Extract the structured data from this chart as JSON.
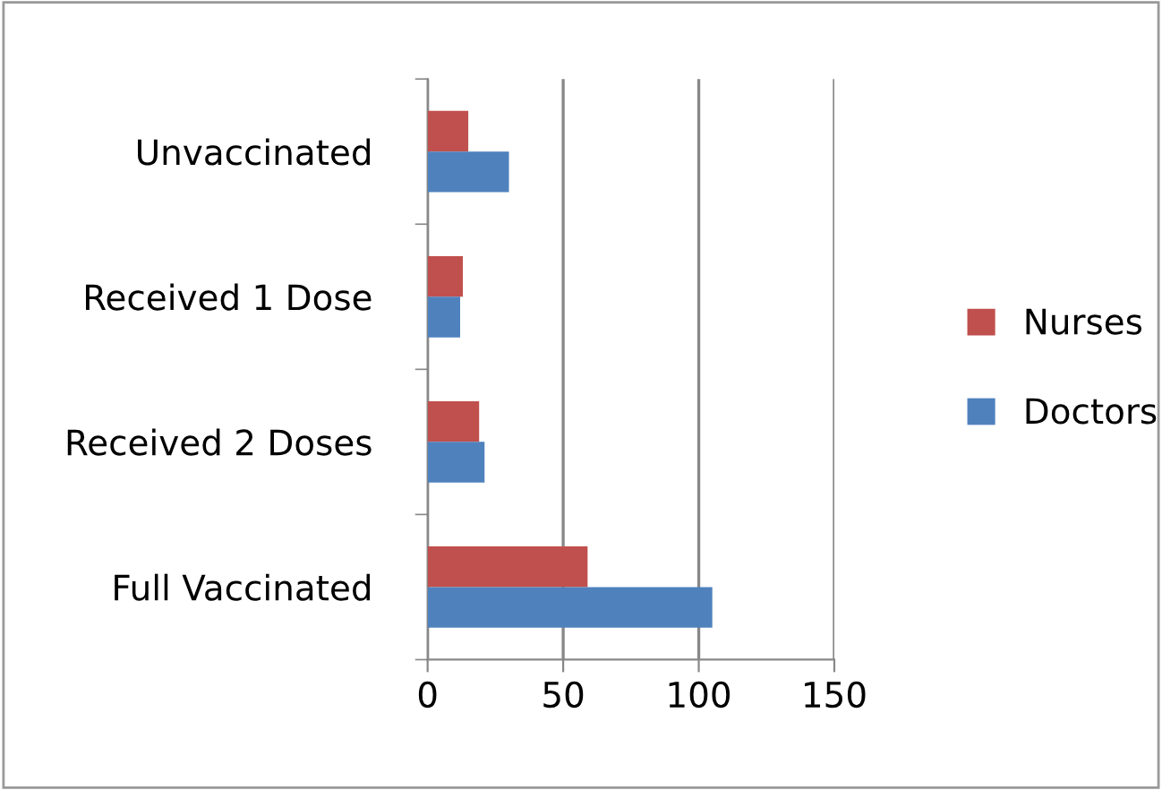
{
  "chart_data": {
    "type": "bar",
    "orientation": "horizontal",
    "categories": [
      "Unvaccinated",
      "Received 1 Dose",
      "Received 2 Doses",
      "Full Vaccinated"
    ],
    "series": [
      {
        "name": "Nurses",
        "color": "#c0504d",
        "values": [
          15,
          13,
          19,
          59
        ]
      },
      {
        "name": "Doctors",
        "color": "#4f81bd",
        "values": [
          30,
          12,
          21,
          105
        ]
      }
    ],
    "xlim": [
      0,
      150
    ],
    "xticks": [
      0,
      50,
      100,
      150
    ],
    "grid": "x",
    "legend": "right"
  }
}
